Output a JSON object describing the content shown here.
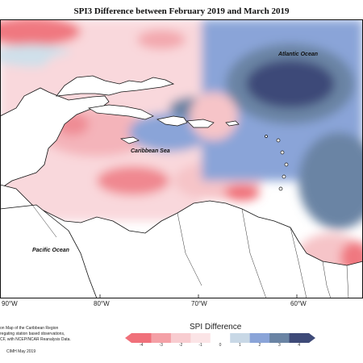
{
  "title": "SPI3 Difference between February 2019 and March 2019",
  "labels": {
    "atlantic": "Atlantic Ocean",
    "caribbean": "Caribbean Sea",
    "pacific": "Pacific Ocean"
  },
  "longitudes": [
    "90°W",
    "80°W",
    "70°W",
    "60°W"
  ],
  "legend": {
    "title": "SPI Difference",
    "ticks": [
      "-4",
      "-3",
      "-2",
      "-1",
      "0",
      "1",
      "2",
      "3",
      "4"
    ],
    "colors": [
      "#f0707a",
      "#f4a0a6",
      "#f8ccd0",
      "#fbe4e6",
      "#ffffff",
      "#c8d8e6",
      "#8aa4d8",
      "#6a84a4",
      "#3e4a78"
    ]
  },
  "notes": [
    "on Map of the Caribbean Region",
    "regating station based observations,",
    "CF, with NCEP/NCAR Reanalysis Data.",
    "CIMH May 2019"
  ]
}
